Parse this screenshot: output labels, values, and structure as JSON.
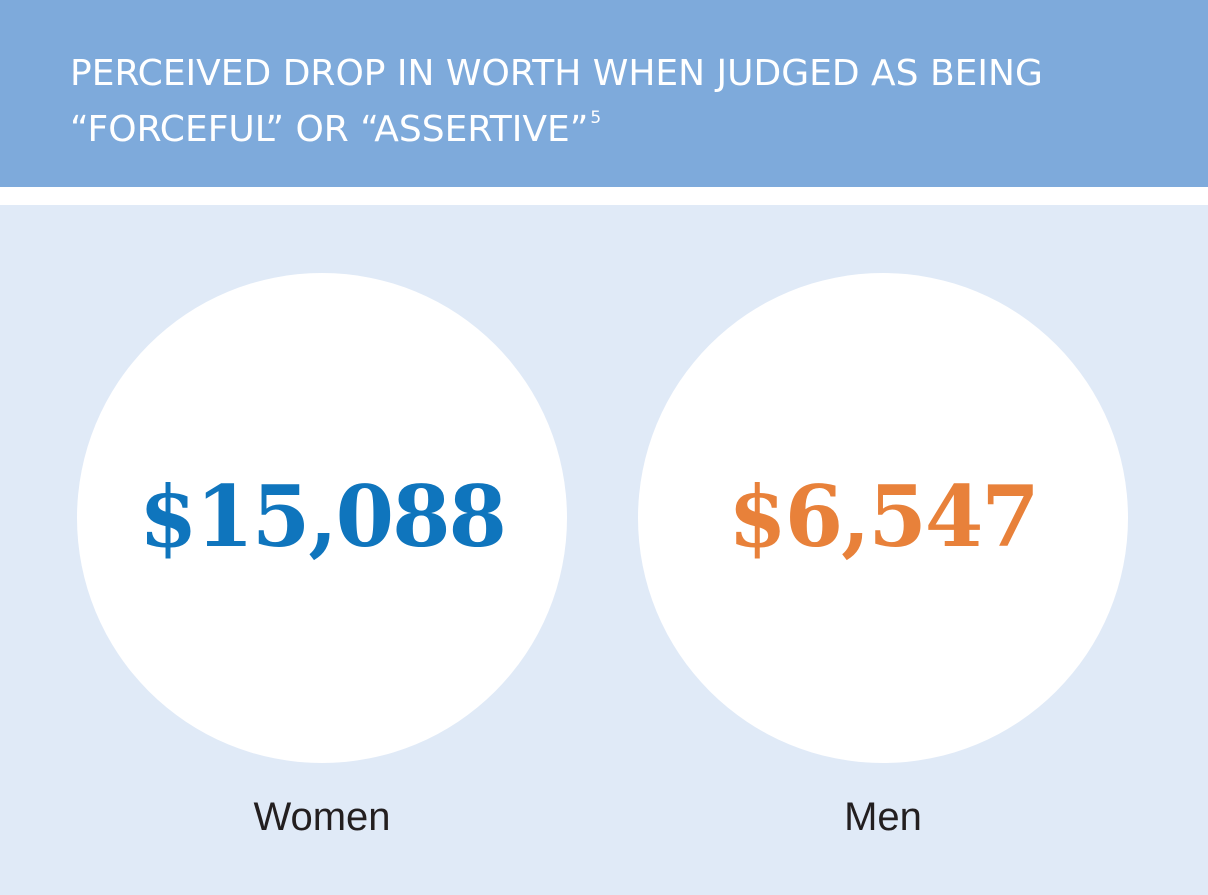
{
  "header": {
    "title": "PERCEIVED DROP IN WORTH WHEN JUDGED AS BEING “FORCEFUL” OR “ASSERTIVE”",
    "footnote": "5"
  },
  "chart_data": {
    "type": "bar",
    "categories": [
      "Women",
      "Men"
    ],
    "values": [
      15088,
      6547
    ],
    "value_labels": [
      "$15,088",
      "$6,547"
    ],
    "colors": [
      "#0f75bd",
      "#e8813a"
    ],
    "title": "PERCEIVED DROP IN WORTH WHEN JUDGED AS BEING “FORCEFUL” OR “ASSERTIVE”"
  },
  "colors": {
    "header_bg": "#7eaadb",
    "panel_bg": "#e0eaf7",
    "women": "#0f75bd",
    "men": "#e8813a"
  }
}
